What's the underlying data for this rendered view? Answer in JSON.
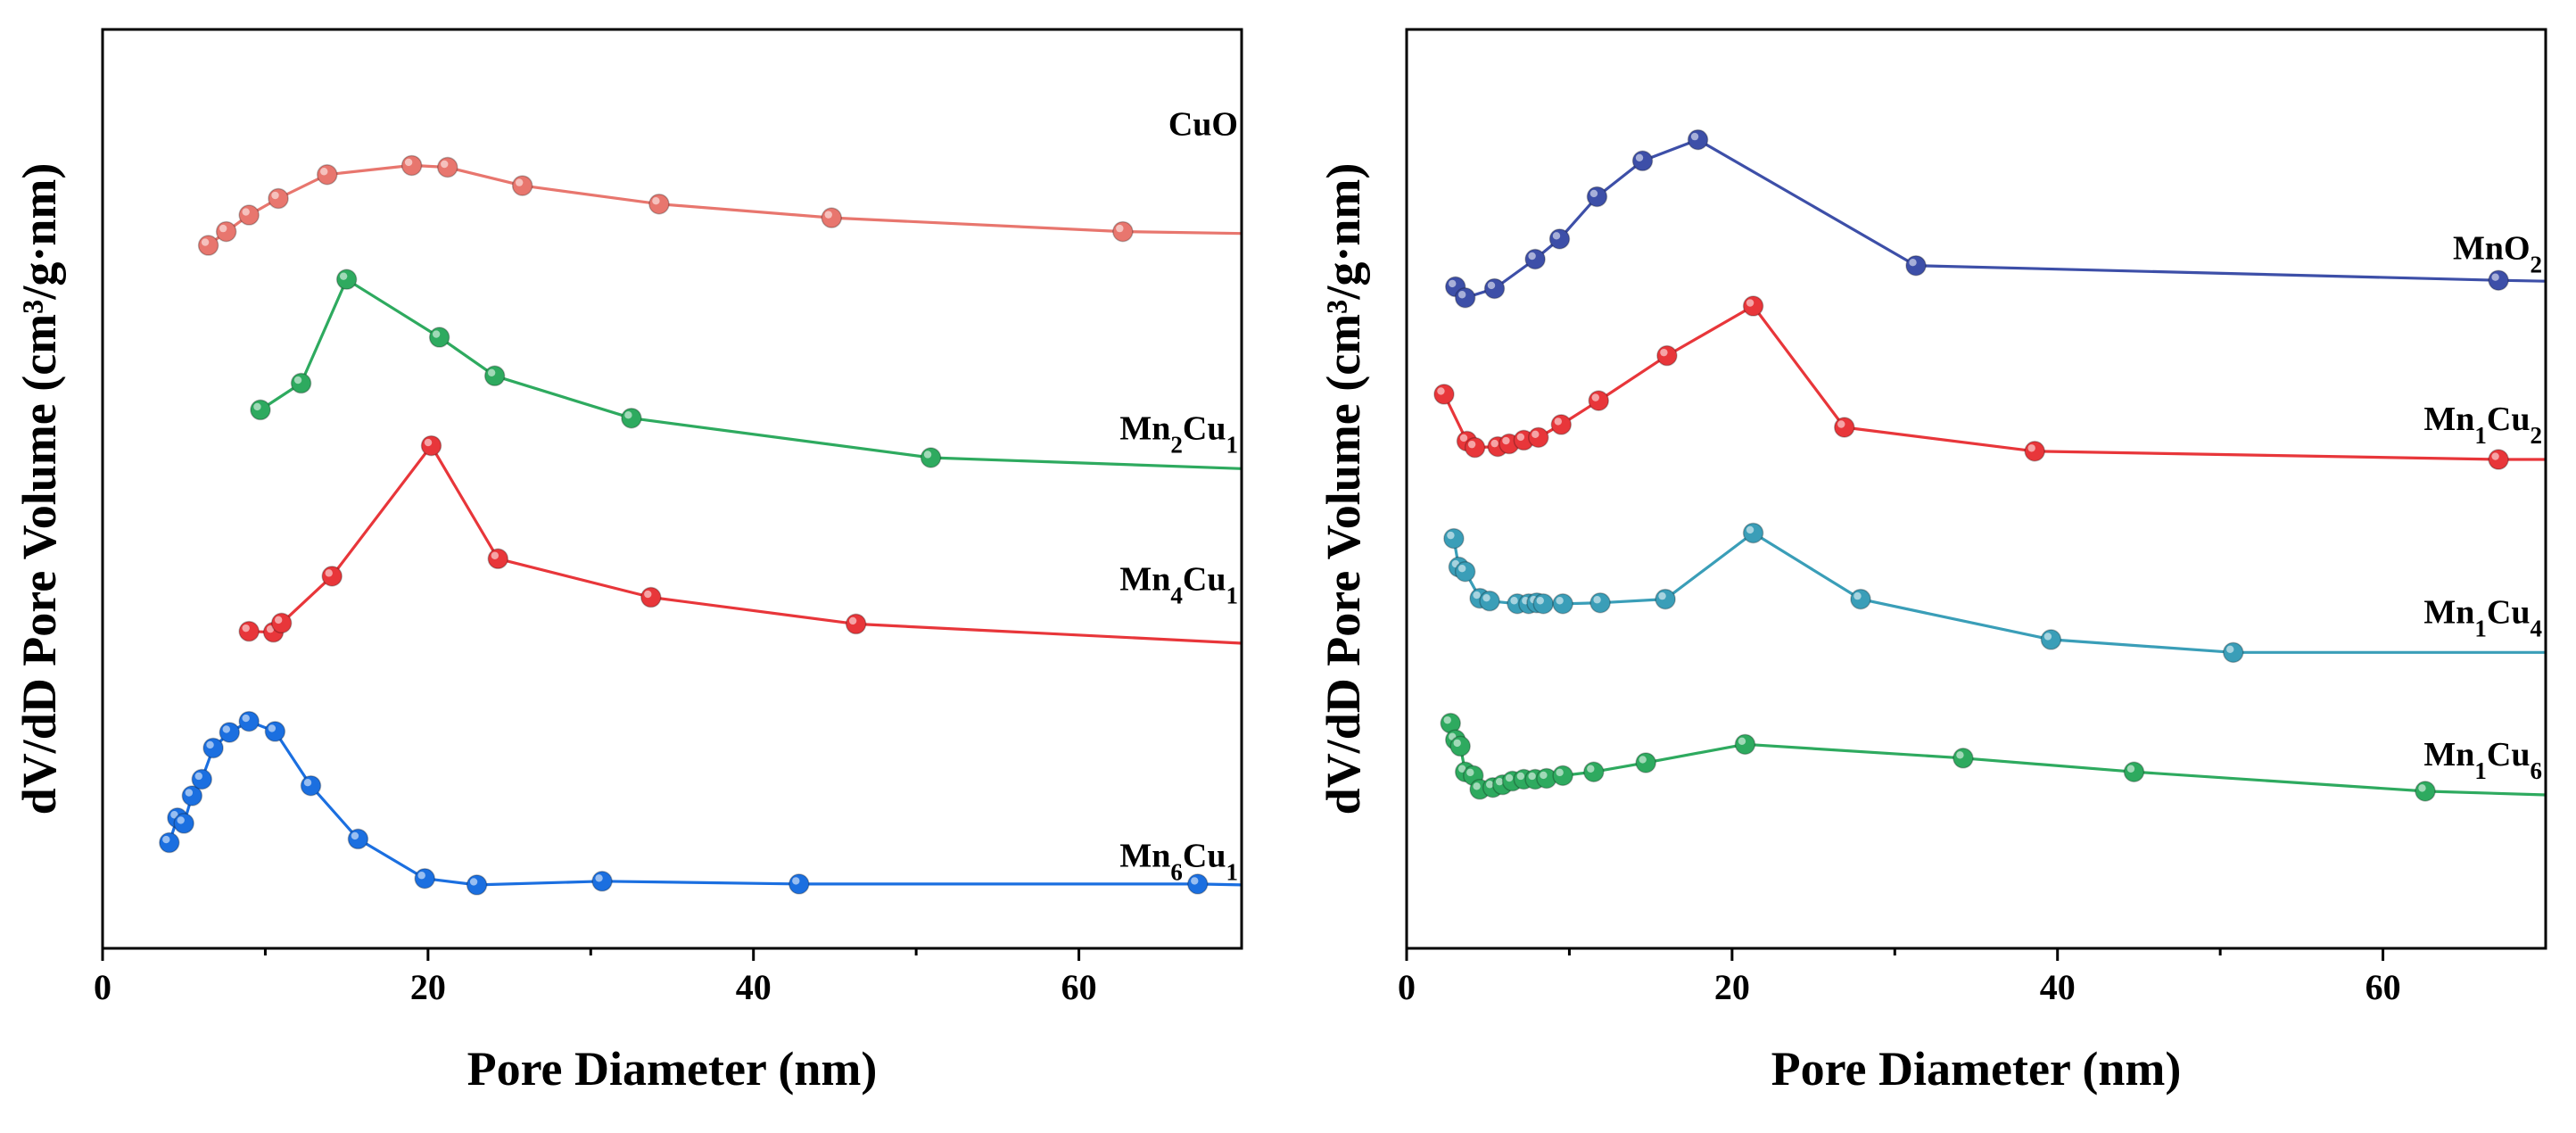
{
  "chart_data": [
    {
      "type": "line",
      "panel": "left",
      "xlabel": "Pore Diameter (nm)",
      "ylabel": "dV/dD Pore Volume (cm³/g·nm)",
      "xlim": [
        0,
        70
      ],
      "ylim": [
        0,
        100
      ],
      "xticks": [
        0,
        20,
        40,
        60
      ],
      "yticks_shown": false,
      "series": [
        {
          "name": "CuO",
          "label_main": "CuO",
          "label_sub": "",
          "label_tail": "",
          "color": "#e8766e",
          "x": [
            6.5,
            7.6,
            9.0,
            10.8,
            13.8,
            19.0,
            21.2,
            25.8,
            34.2,
            44.8,
            62.7,
            70
          ],
          "y": [
            76.5,
            78.0,
            79.8,
            81.6,
            84.2,
            85.2,
            85.0,
            83.0,
            81.0,
            79.5,
            78.0,
            77.8
          ],
          "marker_count": 11
        },
        {
          "name": "Mn2Cu1",
          "label_main": "Mn",
          "label_sub": "2",
          "label_tail": "Cu",
          "label_sub2": "1",
          "color": "#2eaa5f",
          "x": [
            9.7,
            12.2,
            15.0,
            20.7,
            24.1,
            32.5,
            50.9,
            70
          ],
          "y": [
            58.6,
            61.5,
            72.8,
            66.5,
            62.3,
            57.7,
            53.4,
            52.2
          ],
          "marker_count": 7
        },
        {
          "name": "Mn4Cu1",
          "label_main": "Mn",
          "label_sub": "4",
          "label_tail": "Cu",
          "label_sub2": "1",
          "color": "#e8363a",
          "x": [
            9.0,
            10.5,
            11.0,
            14.1,
            20.2,
            24.3,
            33.7,
            46.3,
            70
          ],
          "y": [
            34.5,
            34.4,
            35.4,
            40.5,
            54.7,
            42.4,
            38.2,
            35.3,
            33.2
          ],
          "marker_count": 8
        },
        {
          "name": "Mn6Cu1",
          "label_main": "Mn",
          "label_sub": "6",
          "label_tail": "Cu",
          "label_sub2": "1",
          "color": "#1b6fe0",
          "x": [
            4.1,
            4.6,
            5.0,
            5.5,
            6.1,
            6.8,
            7.8,
            9.0,
            10.6,
            12.8,
            15.7,
            19.8,
            23.0,
            30.7,
            42.8,
            67.3,
            70
          ],
          "y": [
            11.5,
            14.2,
            13.6,
            16.6,
            18.4,
            21.8,
            23.5,
            24.7,
            23.6,
            17.7,
            11.9,
            7.6,
            6.9,
            7.3,
            7.0,
            7.0,
            6.9
          ],
          "marker_count": 16
        }
      ]
    },
    {
      "type": "line",
      "panel": "right",
      "xlabel": "Pore Diameter (nm)",
      "ylabel": "dV/dD Pore Volume (cm³/g·nm)",
      "xlim": [
        0,
        70
      ],
      "ylim": [
        0,
        100
      ],
      "xticks": [
        0,
        20,
        40,
        60
      ],
      "yticks_shown": false,
      "series": [
        {
          "name": "MnO2",
          "label_main": "MnO",
          "label_sub": "2",
          "label_tail": "",
          "label_sub2": "",
          "color": "#3d4fa8",
          "x": [
            3.0,
            3.6,
            5.4,
            7.9,
            9.4,
            11.7,
            14.5,
            17.9,
            31.3,
            67.1,
            70
          ],
          "y": [
            72.0,
            70.8,
            71.8,
            75.0,
            77.2,
            81.8,
            85.7,
            88.0,
            74.3,
            72.7,
            72.6
          ],
          "marker_count": 10
        },
        {
          "name": "Mn1Cu2",
          "label_main": "Mn",
          "label_sub": "1",
          "label_tail": "Cu",
          "label_sub2": "2",
          "color": "#e8363a",
          "x": [
            2.3,
            3.7,
            4.2,
            5.6,
            6.3,
            7.2,
            8.1,
            9.5,
            11.8,
            16.0,
            21.3,
            26.9,
            38.6,
            67.1,
            70
          ],
          "y": [
            60.3,
            55.2,
            54.5,
            54.6,
            54.9,
            55.3,
            55.6,
            57.0,
            59.6,
            64.5,
            69.9,
            56.7,
            54.1,
            53.2,
            53.2
          ],
          "marker_count": 14
        },
        {
          "name": "Mn1Cu4",
          "label_main": "Mn",
          "label_sub": "1",
          "label_tail": "Cu",
          "label_sub2": "4",
          "color": "#3a9eb8",
          "x": [
            2.9,
            3.2,
            3.6,
            4.5,
            5.1,
            6.8,
            7.5,
            8.0,
            8.4,
            9.6,
            11.9,
            15.9,
            21.3,
            27.9,
            39.6,
            50.8,
            70
          ],
          "y": [
            44.6,
            41.5,
            41.0,
            38.1,
            37.8,
            37.5,
            37.5,
            37.6,
            37.5,
            37.5,
            37.6,
            38.0,
            45.2,
            38.0,
            33.6,
            32.2,
            32.2
          ],
          "marker_count": 16
        },
        {
          "name": "Mn1Cu6",
          "label_main": "Mn",
          "label_sub": "1",
          "label_tail": "Cu",
          "label_sub2": "6",
          "color": "#2eaa5f",
          "x": [
            2.7,
            3.0,
            3.3,
            3.6,
            4.1,
            4.5,
            5.3,
            5.9,
            6.5,
            7.2,
            7.9,
            8.6,
            9.6,
            11.5,
            14.7,
            20.8,
            34.2,
            44.7,
            62.6,
            70
          ],
          "y": [
            24.5,
            22.7,
            22.0,
            19.2,
            18.8,
            17.3,
            17.5,
            17.8,
            18.2,
            18.4,
            18.4,
            18.5,
            18.8,
            19.2,
            20.2,
            22.2,
            20.7,
            19.2,
            17.1,
            16.7
          ],
          "marker_count": 19
        }
      ]
    }
  ]
}
